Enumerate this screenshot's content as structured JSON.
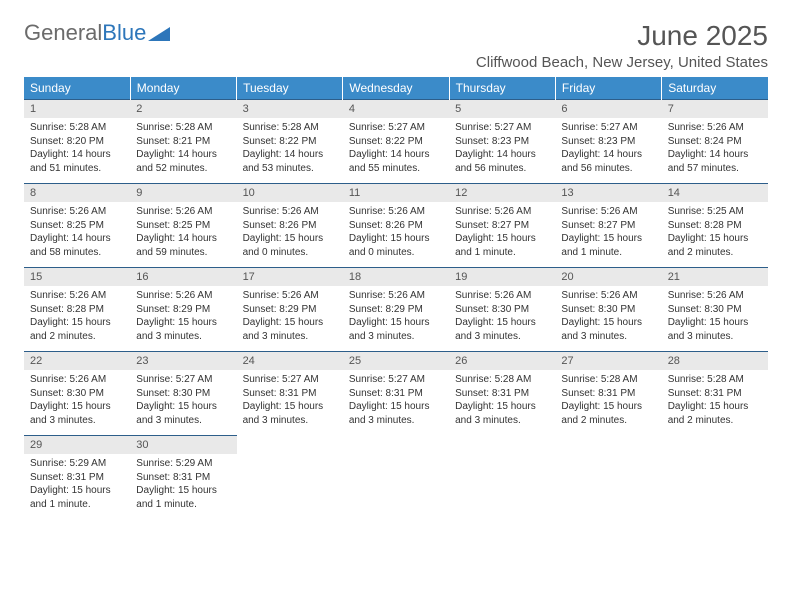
{
  "logo": {
    "part1": "General",
    "part2": "Blue"
  },
  "title": "June 2025",
  "location": "Cliffwood Beach, New Jersey, United States",
  "colors": {
    "header_bg": "#3b8bc9",
    "header_text": "#ffffff",
    "daynum_bg": "#e9e9e9",
    "border": "#2d5e8a",
    "logo_gray": "#6b6b6b",
    "logo_blue": "#2d76ba"
  },
  "weekdays": [
    "Sunday",
    "Monday",
    "Tuesday",
    "Wednesday",
    "Thursday",
    "Friday",
    "Saturday"
  ],
  "weeks": [
    [
      {
        "n": "1",
        "sr": "5:28 AM",
        "ss": "8:20 PM",
        "dl": "14 hours and 51 minutes."
      },
      {
        "n": "2",
        "sr": "5:28 AM",
        "ss": "8:21 PM",
        "dl": "14 hours and 52 minutes."
      },
      {
        "n": "3",
        "sr": "5:28 AM",
        "ss": "8:22 PM",
        "dl": "14 hours and 53 minutes."
      },
      {
        "n": "4",
        "sr": "5:27 AM",
        "ss": "8:22 PM",
        "dl": "14 hours and 55 minutes."
      },
      {
        "n": "5",
        "sr": "5:27 AM",
        "ss": "8:23 PM",
        "dl": "14 hours and 56 minutes."
      },
      {
        "n": "6",
        "sr": "5:27 AM",
        "ss": "8:23 PM",
        "dl": "14 hours and 56 minutes."
      },
      {
        "n": "7",
        "sr": "5:26 AM",
        "ss": "8:24 PM",
        "dl": "14 hours and 57 minutes."
      }
    ],
    [
      {
        "n": "8",
        "sr": "5:26 AM",
        "ss": "8:25 PM",
        "dl": "14 hours and 58 minutes."
      },
      {
        "n": "9",
        "sr": "5:26 AM",
        "ss": "8:25 PM",
        "dl": "14 hours and 59 minutes."
      },
      {
        "n": "10",
        "sr": "5:26 AM",
        "ss": "8:26 PM",
        "dl": "15 hours and 0 minutes."
      },
      {
        "n": "11",
        "sr": "5:26 AM",
        "ss": "8:26 PM",
        "dl": "15 hours and 0 minutes."
      },
      {
        "n": "12",
        "sr": "5:26 AM",
        "ss": "8:27 PM",
        "dl": "15 hours and 1 minute."
      },
      {
        "n": "13",
        "sr": "5:26 AM",
        "ss": "8:27 PM",
        "dl": "15 hours and 1 minute."
      },
      {
        "n": "14",
        "sr": "5:25 AM",
        "ss": "8:28 PM",
        "dl": "15 hours and 2 minutes."
      }
    ],
    [
      {
        "n": "15",
        "sr": "5:26 AM",
        "ss": "8:28 PM",
        "dl": "15 hours and 2 minutes."
      },
      {
        "n": "16",
        "sr": "5:26 AM",
        "ss": "8:29 PM",
        "dl": "15 hours and 3 minutes."
      },
      {
        "n": "17",
        "sr": "5:26 AM",
        "ss": "8:29 PM",
        "dl": "15 hours and 3 minutes."
      },
      {
        "n": "18",
        "sr": "5:26 AM",
        "ss": "8:29 PM",
        "dl": "15 hours and 3 minutes."
      },
      {
        "n": "19",
        "sr": "5:26 AM",
        "ss": "8:30 PM",
        "dl": "15 hours and 3 minutes."
      },
      {
        "n": "20",
        "sr": "5:26 AM",
        "ss": "8:30 PM",
        "dl": "15 hours and 3 minutes."
      },
      {
        "n": "21",
        "sr": "5:26 AM",
        "ss": "8:30 PM",
        "dl": "15 hours and 3 minutes."
      }
    ],
    [
      {
        "n": "22",
        "sr": "5:26 AM",
        "ss": "8:30 PM",
        "dl": "15 hours and 3 minutes."
      },
      {
        "n": "23",
        "sr": "5:27 AM",
        "ss": "8:30 PM",
        "dl": "15 hours and 3 minutes."
      },
      {
        "n": "24",
        "sr": "5:27 AM",
        "ss": "8:31 PM",
        "dl": "15 hours and 3 minutes."
      },
      {
        "n": "25",
        "sr": "5:27 AM",
        "ss": "8:31 PM",
        "dl": "15 hours and 3 minutes."
      },
      {
        "n": "26",
        "sr": "5:28 AM",
        "ss": "8:31 PM",
        "dl": "15 hours and 3 minutes."
      },
      {
        "n": "27",
        "sr": "5:28 AM",
        "ss": "8:31 PM",
        "dl": "15 hours and 2 minutes."
      },
      {
        "n": "28",
        "sr": "5:28 AM",
        "ss": "8:31 PM",
        "dl": "15 hours and 2 minutes."
      }
    ],
    [
      {
        "n": "29",
        "sr": "5:29 AM",
        "ss": "8:31 PM",
        "dl": "15 hours and 1 minute."
      },
      {
        "n": "30",
        "sr": "5:29 AM",
        "ss": "8:31 PM",
        "dl": "15 hours and 1 minute."
      },
      null,
      null,
      null,
      null,
      null
    ]
  ],
  "labels": {
    "sunrise": "Sunrise: ",
    "sunset": "Sunset: ",
    "daylight": "Daylight: "
  }
}
